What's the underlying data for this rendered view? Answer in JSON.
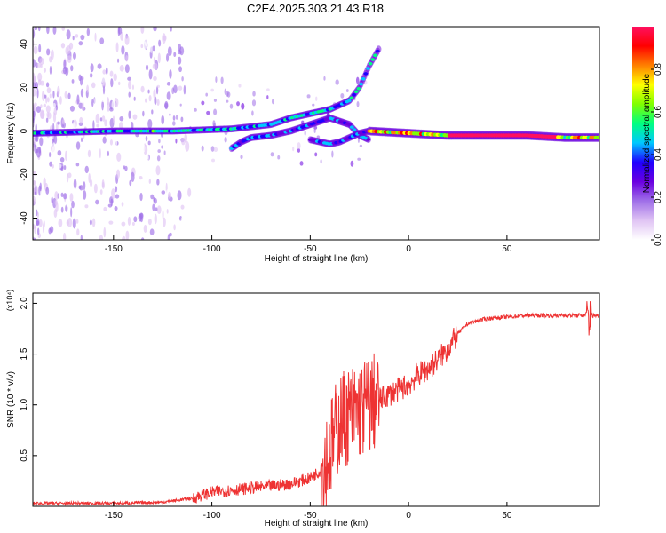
{
  "title": "C2E4.2025.303.21.43.R18",
  "chart_data": [
    {
      "type": "heatmap",
      "name": "spectrogram",
      "xlabel": "Height of straight line (km)",
      "ylabel": "Frequency (Hz)",
      "xlim": [
        -191,
        97
      ],
      "ylim": [
        -50,
        48
      ],
      "xticks": [
        -150,
        -100,
        -50,
        0,
        50
      ],
      "yticks": [
        -40,
        -20,
        0,
        20,
        40
      ],
      "grid": false,
      "colorbar": {
        "label": "Normalized spectral amplitude",
        "range": [
          0,
          1
        ],
        "ticks": [
          0.0,
          0.2,
          0.4,
          0.6,
          0.8
        ],
        "colormap": [
          "#ffffff",
          "#e0c4f4",
          "#a070e8",
          "#6a00e0",
          "#1f00ff",
          "#00c8ff",
          "#00ff80",
          "#80ff00",
          "#ffff00",
          "#ff8000",
          "#ff0000",
          "#ff1060"
        ]
      },
      "traces": [
        {
          "name": "main-trace",
          "amplitude": 0.6,
          "points": [
            [
              -191,
              -1
            ],
            [
              -150,
              0
            ],
            [
              -120,
              0
            ],
            [
              -90,
              1
            ],
            [
              -80,
              2
            ],
            [
              -70,
              3
            ],
            [
              -60,
              6
            ],
            [
              -50,
              8
            ],
            [
              -40,
              10
            ],
            [
              -30,
              14
            ],
            [
              -25,
              20
            ],
            [
              -20,
              30
            ],
            [
              -15,
              38
            ]
          ]
        },
        {
          "name": "lower-trace",
          "amplitude": 0.5,
          "points": [
            [
              -90,
              -8
            ],
            [
              -85,
              -5
            ],
            [
              -80,
              -3
            ],
            [
              -70,
              -2
            ],
            [
              -60,
              0
            ],
            [
              -50,
              3
            ],
            [
              -40,
              6
            ],
            [
              -30,
              3
            ],
            [
              -25,
              -2
            ],
            [
              -20,
              -4
            ]
          ]
        },
        {
          "name": "falling-trace",
          "amplitude": 0.45,
          "points": [
            [
              -50,
              -4
            ],
            [
              -45,
              -5
            ],
            [
              -40,
              -6
            ],
            [
              -35,
              -5
            ],
            [
              -30,
              -3
            ],
            [
              -25,
              -1
            ],
            [
              -20,
              0
            ]
          ]
        },
        {
          "name": "carrier-trace",
          "amplitude": 0.9,
          "points": [
            [
              -20,
              0
            ],
            [
              0,
              -1
            ],
            [
              20,
              -2
            ],
            [
              40,
              -2
            ],
            [
              60,
              -2
            ],
            [
              80,
              -3
            ],
            [
              97,
              -3
            ]
          ]
        }
      ]
    },
    {
      "type": "line",
      "name": "snr",
      "xlabel": "Height of straight line (km)",
      "ylabel": "SNR (10 * v/v)",
      "scale_label": "(x10⁴)",
      "xlim": [
        -191,
        97
      ],
      "ylim": [
        0,
        2.1
      ],
      "xticks": [
        -150,
        -100,
        -50,
        0,
        50
      ],
      "yticks": [
        0.5,
        1.0,
        1.5,
        2.0
      ],
      "ytick_labels": [
        "0.5",
        "1.0",
        "1.5",
        "2.0"
      ],
      "grid": false,
      "color": "#ee3333",
      "series": [
        {
          "name": "SNR",
          "envelope": [
            [
              -191,
              0.03
            ],
            [
              -150,
              0.03
            ],
            [
              -125,
              0.04
            ],
            [
              -110,
              0.08
            ],
            [
              -100,
              0.14
            ],
            [
              -80,
              0.18
            ],
            [
              -60,
              0.22
            ],
            [
              -50,
              0.28
            ],
            [
              -45,
              0.35
            ],
            [
              -40,
              0.55
            ],
            [
              -35,
              0.85
            ],
            [
              -30,
              0.9
            ],
            [
              -25,
              0.95
            ],
            [
              -20,
              1.0
            ],
            [
              -15,
              1.05
            ],
            [
              -10,
              1.1
            ],
            [
              -5,
              1.15
            ],
            [
              0,
              1.2
            ],
            [
              5,
              1.3
            ],
            [
              10,
              1.35
            ],
            [
              15,
              1.45
            ],
            [
              20,
              1.55
            ],
            [
              25,
              1.7
            ],
            [
              30,
              1.8
            ],
            [
              40,
              1.85
            ],
            [
              60,
              1.88
            ],
            [
              80,
              1.88
            ],
            [
              97,
              1.88
            ]
          ]
        }
      ]
    }
  ]
}
